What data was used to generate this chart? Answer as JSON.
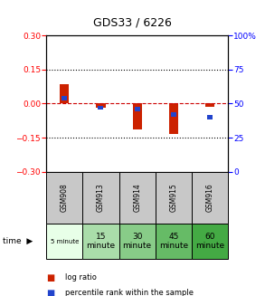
{
  "title": "GDS33 / 6226",
  "samples": [
    "GSM908",
    "GSM913",
    "GSM914",
    "GSM915",
    "GSM916"
  ],
  "time_labels": [
    "5 minute",
    "15\nminute",
    "30\nminute",
    "45\nminute",
    "60\nminute"
  ],
  "time_colors": [
    "#e8ffe8",
    "#aaddaa",
    "#88cc88",
    "#66bb66",
    "#44aa44"
  ],
  "log_ratio": [
    0.085,
    -0.02,
    -0.115,
    -0.135,
    -0.015
  ],
  "percentile_rank": [
    54,
    47,
    46,
    42,
    40
  ],
  "ylim_left": [
    -0.3,
    0.3
  ],
  "ylim_right": [
    0,
    100
  ],
  "yticks_left": [
    -0.3,
    -0.15,
    0,
    0.15,
    0.3
  ],
  "yticks_right": [
    0,
    25,
    50,
    75,
    100
  ],
  "bar_width": 0.25,
  "red_color": "#cc2200",
  "blue_color": "#2244cc",
  "zero_line_color": "#cc0000",
  "background_color": "#ffffff",
  "sample_cell_color": "#c8c8c8"
}
